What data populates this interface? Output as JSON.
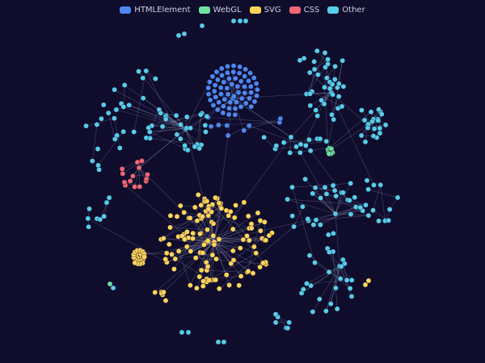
{
  "legend": [
    {
      "label": "HTMLElement",
      "color": "#4e87ee"
    },
    {
      "label": "WebGL",
      "color": "#6fe0a0"
    },
    {
      "label": "SVG",
      "color": "#ffd55a"
    },
    {
      "label": "CSS",
      "color": "#ef6674"
    },
    {
      "label": "Other",
      "color": "#58cde8"
    }
  ],
  "graph": {
    "categories": [
      "HTMLElement",
      "WebGL",
      "SVG",
      "CSS",
      "Other"
    ],
    "node_counts": {
      "HTMLElement": 70,
      "WebGL": 10,
      "SVG": 150,
      "CSS": 14,
      "Other": 200
    }
  }
}
